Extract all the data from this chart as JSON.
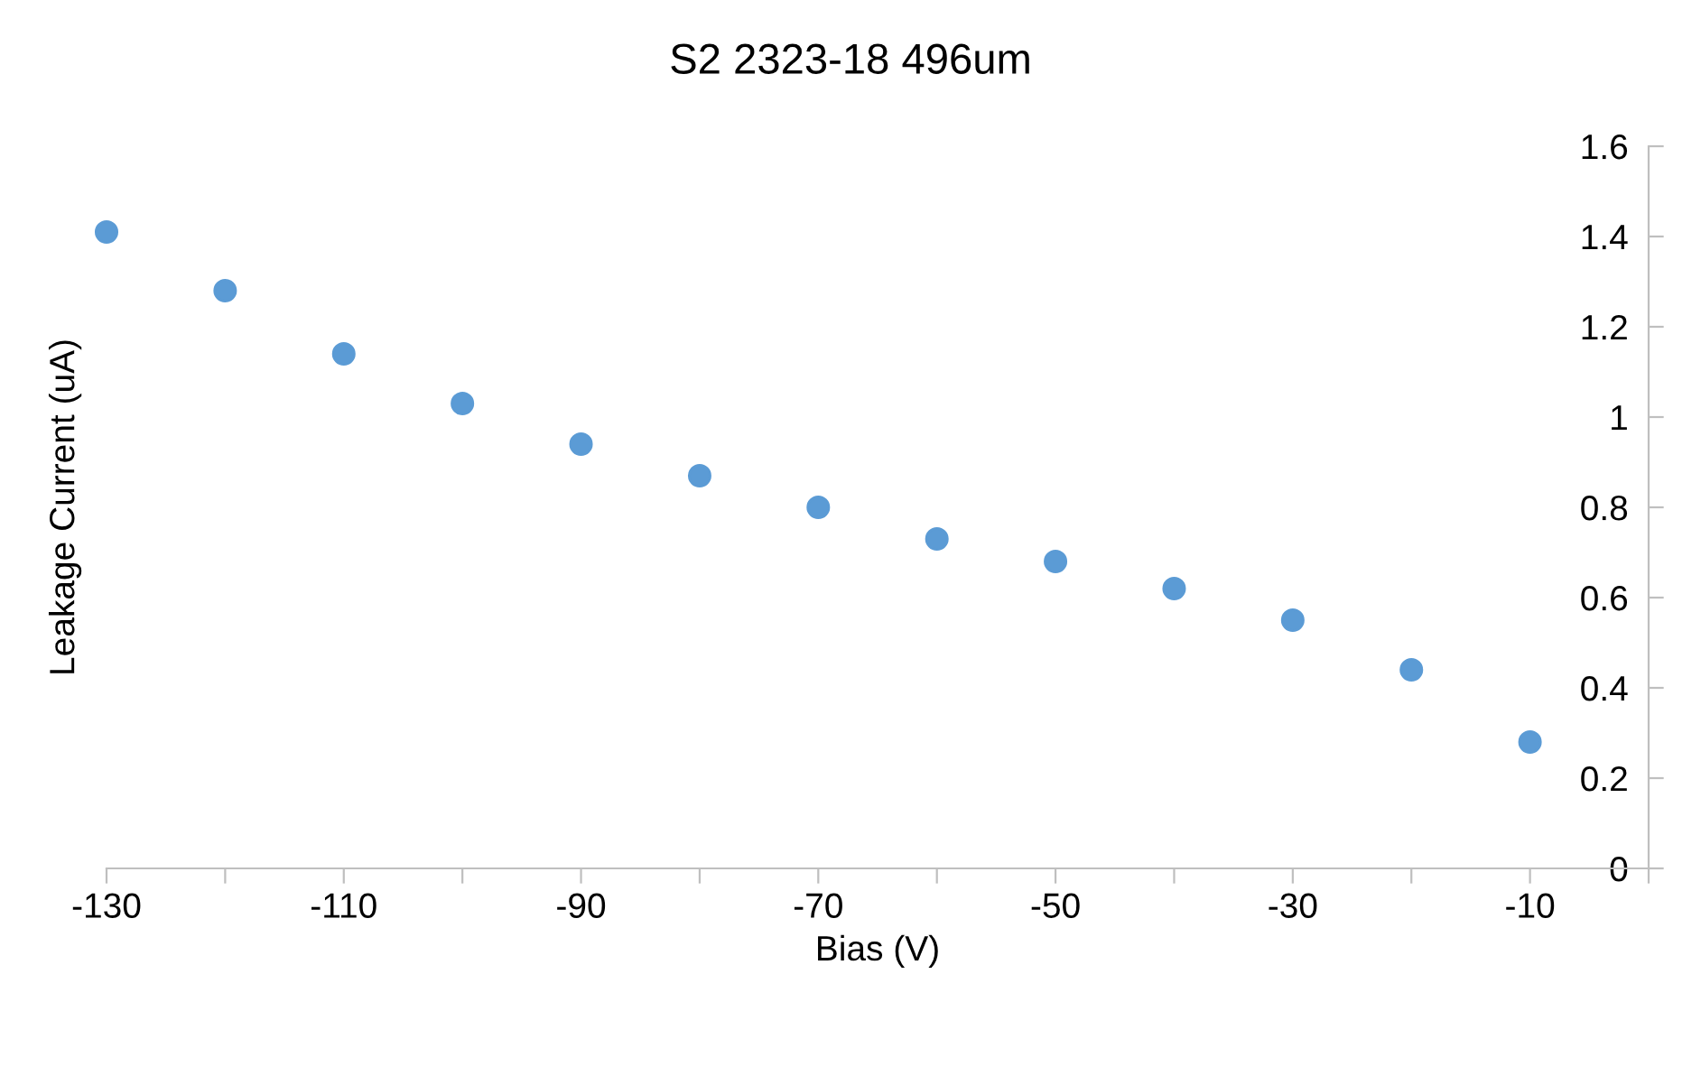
{
  "chart_data": {
    "type": "scatter",
    "title": "S2 2323-18 496um",
    "xlabel": "Bias (V)",
    "ylabel": "Leakage Current (uA)",
    "x": [
      -130,
      -120,
      -110,
      -100,
      -90,
      -80,
      -70,
      -60,
      -50,
      -40,
      -30,
      -20,
      -10
    ],
    "series": [
      {
        "color": "#5b9bd5",
        "values": [
          1.41,
          1.28,
          1.14,
          1.03,
          0.94,
          0.87,
          0.8,
          0.73,
          0.68,
          0.62,
          0.55,
          0.44,
          0.28
        ]
      }
    ],
    "xlim": [
      -130,
      0
    ],
    "xticks": [
      -130,
      {
        "value": -120,
        "label": null
      },
      -110,
      {
        "value": -100,
        "label": null
      },
      -90,
      {
        "value": -80,
        "label": null
      },
      -70,
      {
        "value": -60,
        "label": null
      },
      -50,
      {
        "value": -40,
        "label": null
      },
      -30,
      {
        "value": -20,
        "label": null
      },
      -10,
      {
        "value": 0,
        "label": null
      }
    ],
    "ylim": [
      0,
      1.6
    ],
    "yticks": [
      0,
      0.2,
      0.4,
      0.6,
      0.8,
      1,
      1.2,
      1.4,
      1.6
    ],
    "grid": false,
    "legend": false,
    "marker": "circle"
  }
}
